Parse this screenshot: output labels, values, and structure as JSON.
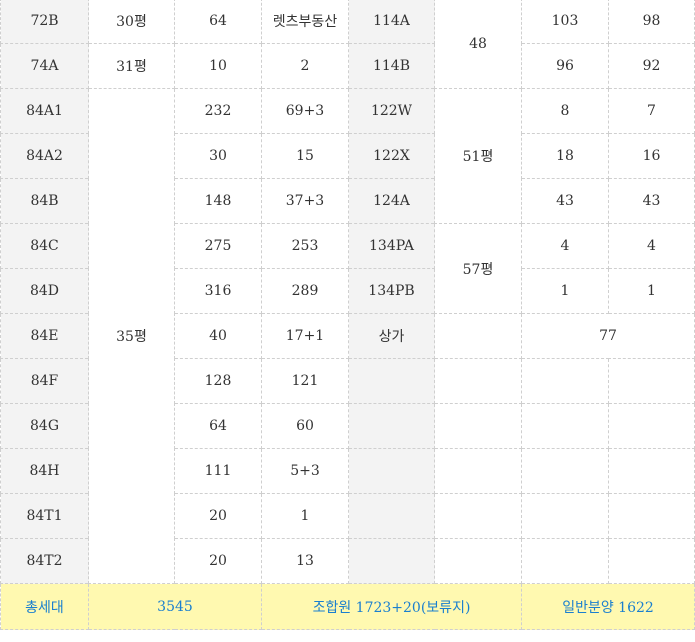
{
  "rows": [
    {
      "type": "72B",
      "pyeong": "30평",
      "total": "64",
      "member": "렛츠부동산",
      "type2": "114A",
      "total2": "103",
      "member2": "98"
    },
    {
      "type": "74A",
      "pyeong": "31평",
      "total": "10",
      "member": "2",
      "type2": "114B",
      "total2": "96",
      "member2": "92"
    },
    {
      "type": "84A1",
      "total": "232",
      "member": "69+3",
      "type2": "122W",
      "total2": "8",
      "member2": "7"
    },
    {
      "type": "84A2",
      "total": "30",
      "member": "15",
      "type2": "122X",
      "total2": "18",
      "member2": "16"
    },
    {
      "type": "84B",
      "total": "148",
      "member": "37+3",
      "type2": "124A",
      "total2": "43",
      "member2": "43"
    },
    {
      "type": "84C",
      "total": "275",
      "member": "253",
      "type2": "134PA",
      "total2": "4",
      "member2": "4"
    },
    {
      "type": "84D",
      "total": "316",
      "member": "289",
      "type2": "134PB",
      "total2": "1",
      "member2": "1"
    },
    {
      "type": "84E",
      "total": "40",
      "member": "17+1",
      "type2": "상가",
      "shop_total": "77"
    },
    {
      "type": "84F",
      "total": "128",
      "member": "121"
    },
    {
      "type": "84G",
      "total": "64",
      "member": "60"
    },
    {
      "type": "84H",
      "total": "111",
      "member": "5+3"
    },
    {
      "type": "84T1",
      "total": "20",
      "member": "1"
    },
    {
      "type": "84T2",
      "total": "20",
      "member": "13"
    }
  ],
  "pyeong_groups": {
    "g35": "35평",
    "g48": "48",
    "g51": "51평",
    "g57": "57평"
  },
  "totals": {
    "label": "총세대",
    "all": "3545",
    "members": "조합원 1723+20(보류지)",
    "general": "일반분양 1622"
  },
  "colors": {
    "type_blue": "#1a7fcf",
    "pyeong_green": "#1fae74",
    "total_row_bg": "#fff9b0",
    "type_col_bg": "#f3f3f3"
  }
}
